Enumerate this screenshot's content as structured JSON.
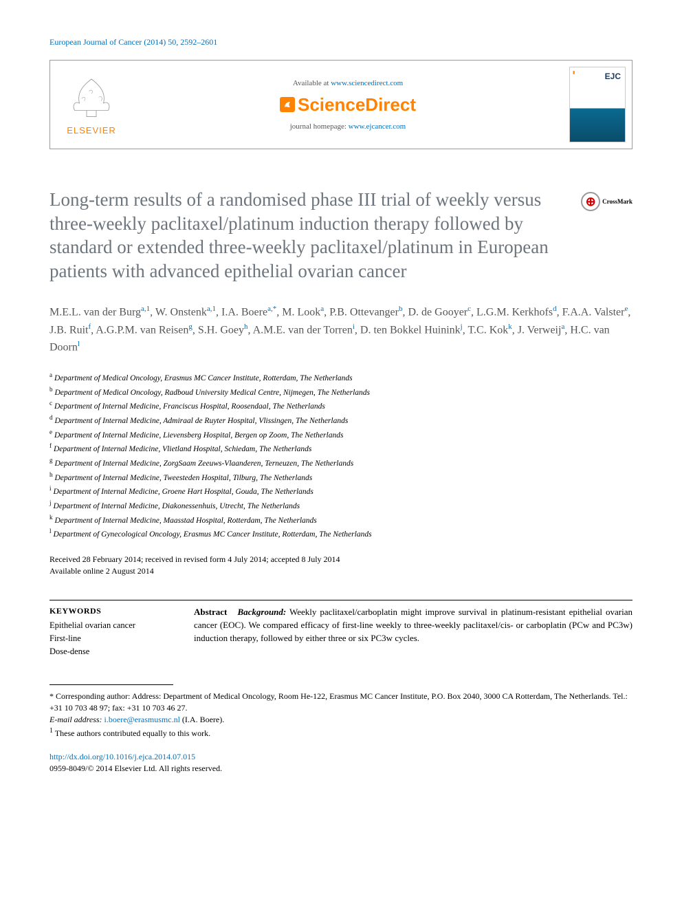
{
  "journal_ref": "European Journal of Cancer (2014) 50, 2592–2601",
  "header": {
    "available_prefix": "Available at ",
    "available_link": "www.sciencedirect.com",
    "sciencedirect": "ScienceDirect",
    "elsevier": "ELSEVIER",
    "journal_home_prefix": "journal homepage: ",
    "journal_home_link": "www.ejcancer.com",
    "cover_label": "EJC"
  },
  "crossmark_label": "CrossMark",
  "title": "Long-term results of a randomised phase III trial of weekly versus three-weekly paclitaxel/platinum induction therapy followed by standard or extended three-weekly paclitaxel/platinum in European patients with advanced epithelial ovarian cancer",
  "authors": [
    {
      "name": "M.E.L. van der Burg",
      "aff": "a,1"
    },
    {
      "name": "W. Onstenk",
      "aff": "a,1"
    },
    {
      "name": "I.A. Boere",
      "aff": "a,*"
    },
    {
      "name": "M. Look",
      "aff": "a"
    },
    {
      "name": "P.B. Ottevanger",
      "aff": "b"
    },
    {
      "name": "D. de Gooyer",
      "aff": "c"
    },
    {
      "name": "L.G.M. Kerkhofs",
      "aff": "d"
    },
    {
      "name": "F.A.A. Valster",
      "aff": "e"
    },
    {
      "name": "J.B. Ruit",
      "aff": "f"
    },
    {
      "name": "A.G.P.M. van Reisen",
      "aff": "g"
    },
    {
      "name": "S.H. Goey",
      "aff": "h"
    },
    {
      "name": "A.M.E. van der Torren",
      "aff": "i"
    },
    {
      "name": "D. ten Bokkel Huinink",
      "aff": "j"
    },
    {
      "name": "T.C. Kok",
      "aff": "k"
    },
    {
      "name": "J. Verweij",
      "aff": "a"
    },
    {
      "name": "H.C. van Doorn",
      "aff": "l"
    }
  ],
  "affiliations": [
    {
      "sup": "a",
      "text": "Department of Medical Oncology, Erasmus MC Cancer Institute, Rotterdam, The Netherlands"
    },
    {
      "sup": "b",
      "text": "Department of Medical Oncology, Radboud University Medical Centre, Nijmegen, The Netherlands"
    },
    {
      "sup": "c",
      "text": "Department of Internal Medicine, Franciscus Hospital, Roosendaal, The Netherlands"
    },
    {
      "sup": "d",
      "text": "Department of Internal Medicine, Admiraal de Ruyter Hospital, Vlissingen, The Netherlands"
    },
    {
      "sup": "e",
      "text": "Department of Internal Medicine, Lievensberg Hospital, Bergen op Zoom, The Netherlands"
    },
    {
      "sup": "f",
      "text": "Department of Internal Medicine, Vlietland Hospital, Schiedam, The Netherlands"
    },
    {
      "sup": "g",
      "text": "Department of Internal Medicine, ZorgSaam Zeeuws-Vlaanderen, Terneuzen, The Netherlands"
    },
    {
      "sup": "h",
      "text": "Department of Internal Medicine, Tweesteden Hospital, Tilburg, The Netherlands"
    },
    {
      "sup": "i",
      "text": "Department of Internal Medicine, Groene Hart Hospital, Gouda, The Netherlands"
    },
    {
      "sup": "j",
      "text": "Department of Internal Medicine, Diakonessenhuis, Utrecht, The Netherlands"
    },
    {
      "sup": "k",
      "text": "Department of Internal Medicine, Maasstad Hospital, Rotterdam, The Netherlands"
    },
    {
      "sup": "l",
      "text": "Department of Gynecological Oncology, Erasmus MC Cancer Institute, Rotterdam, The Netherlands"
    }
  ],
  "dates": {
    "line1": "Received 28 February 2014; received in revised form 4 July 2014; accepted 8 July 2014",
    "line2": "Available online 2 August 2014"
  },
  "keywords_heading": "KEYWORDS",
  "keywords": [
    "Epithelial ovarian cancer",
    "First-line",
    "Dose-dense"
  ],
  "abstract": {
    "label": "Abstract",
    "bg_label": "Background:",
    "bg_text": " Weekly paclitaxel/carboplatin might improve survival in platinum-resistant epithelial ovarian cancer (EOC). We compared efficacy of first-line weekly to three-weekly paclitaxel/cis- or carboplatin (PCw and PC3w) induction therapy, followed by either three or six PC3w cycles."
  },
  "footnotes": {
    "corresponding": "* Corresponding author: Address: Department of Medical Oncology, Room He-122, Erasmus MC Cancer Institute, P.O. Box 2040, 3000 CA Rotterdam, The Netherlands. Tel.: +31 10 703 48 97; fax: +31 10 703 46 27.",
    "email_label": "E-mail address: ",
    "email": "i.boere@erasmusmc.nl",
    "email_person": " (I.A. Boere).",
    "equal": "These authors contributed equally to this work.",
    "equal_sup": "1"
  },
  "doi": "http://dx.doi.org/10.1016/j.ejca.2014.07.015",
  "copyright": "0959-8049/© 2014 Elsevier Ltd. All rights reserved."
}
